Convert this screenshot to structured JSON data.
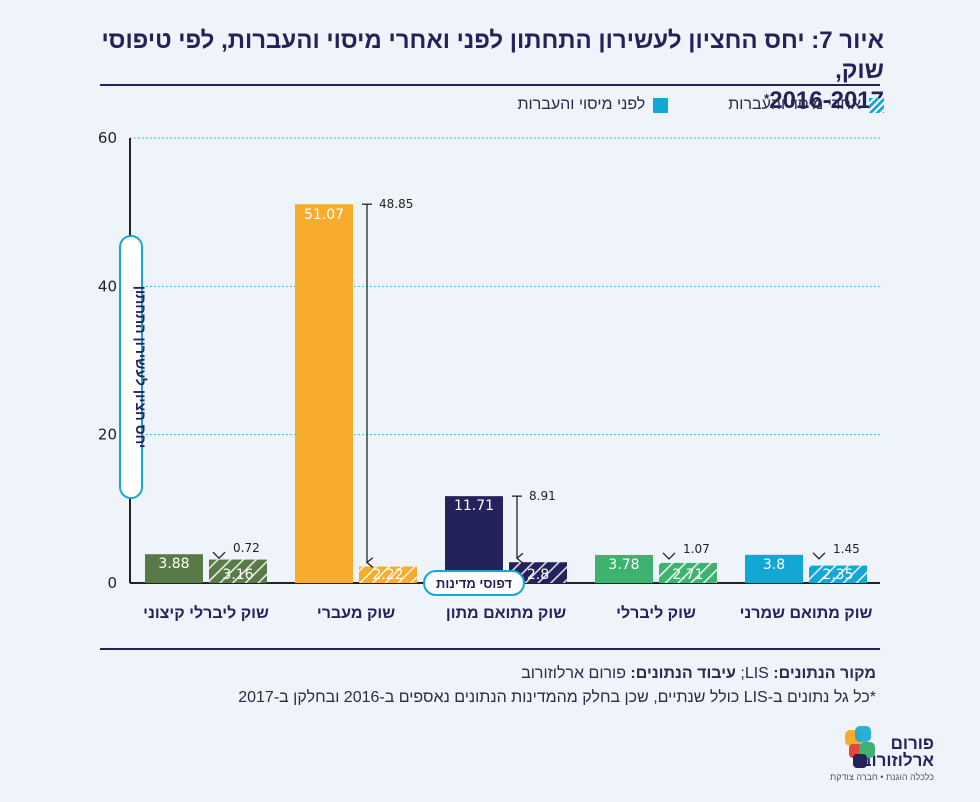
{
  "title": {
    "main": "איור 7: יחס החציון לעשירון התחתון לפני ואחרי מיסוי והעברות, לפי טיפוסי שוק,",
    "years": "2016-2017",
    "footnote_mark": "*"
  },
  "legend": {
    "before": "לפני מיסוי והעברות",
    "after": "אחרי מיסוי והעברות"
  },
  "source": {
    "label1": "מקור הנתונים:",
    "value1": "LIS;",
    "label2": "עיבוד הנתונים:",
    "value2": "פורום ארלוזורוב",
    "footnote": "*כל גל נתונים ב-LIS כולל שנתיים, שכן בחלק מהמדינות הנתונים נאספים ב-2016 ובחלקן ב-2017"
  },
  "logo": {
    "name_line1": "פורום",
    "name_line2": "ארלוזורוב",
    "tagline": "כלכלה הוגנת • חברה צודקת"
  },
  "chart_data": {
    "type": "bar",
    "ylabel": "יחס חציון לעשירון התחתון",
    "xlabel": "דפוסי מדינות",
    "ylim": [
      0,
      60
    ],
    "yticks": [
      0,
      20,
      40,
      60
    ],
    "grid": true,
    "legend_position": "top-right",
    "categories": [
      "שוק ליברלי קיצוני",
      "שוק מעברי",
      "שוק מתואם מתון",
      "שוק ליברלי",
      "שוק מתואם שמרני"
    ],
    "series": [
      {
        "name": "לפני מיסוי והעברות",
        "values": [
          3.88,
          51.07,
          11.71,
          3.78,
          3.8
        ],
        "colors": [
          "#587a46",
          "#f8ac2c",
          "#23225a",
          "#3db36f",
          "#13a7d6"
        ],
        "pattern": "solid"
      },
      {
        "name": "אחרי מיסוי והעברות",
        "values": [
          3.16,
          2.22,
          2.8,
          2.71,
          2.35
        ],
        "colors": [
          "#587a46",
          "#f8ac2c",
          "#23225a",
          "#3db36f",
          "#13a7d6"
        ],
        "pattern": "hatched"
      }
    ],
    "differences": [
      "0.72",
      "48.85",
      "8.91",
      "1.07",
      "1.45"
    ]
  }
}
